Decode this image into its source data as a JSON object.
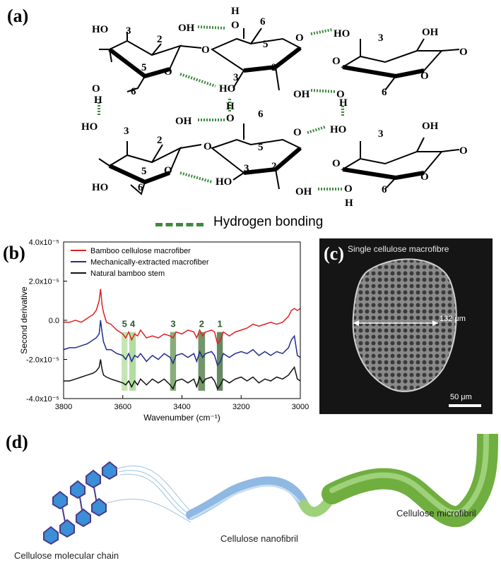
{
  "panels": {
    "a": "(a)",
    "b": "(b)",
    "c": "(c)",
    "d": "(d)"
  },
  "structure": {
    "top": {
      "ho_left": "HO",
      "oh_2": "OH",
      "h_top": "H",
      "o_ring1": "O",
      "o_ring2": "O",
      "o_link1": "O",
      "o_link2": "O",
      "ho_right": "HO",
      "oh_right": "OH",
      "o_h_bottom": "O",
      "h_bottom": "H",
      "oh_bottom": "OH",
      "o_bottom2": "O",
      "h_right": "H",
      "o_ring3": "O",
      "o_end": "O"
    },
    "bottom": {
      "ho_left": "HO",
      "oh_2": "OH",
      "o_top": "O",
      "ho_right": "HO",
      "oh_right": "OH",
      "o_link1": "O",
      "o_link2": "O",
      "o_ring1": "O",
      "o_ring2": "O",
      "o_ring3": "O",
      "ho_bottom_left": "HO",
      "ho_bottom_mid": "HO",
      "oh_bottom": "OH",
      "o_bottom": "O",
      "h_bottom": "H",
      "o_end": "O"
    },
    "numbers": {
      "n3": "3",
      "n2": "2",
      "n5": "5",
      "n6": "6"
    },
    "legend_label": "Hydrogen bonding"
  },
  "chart_data": {
    "type": "line",
    "xlabel": "Wavenumber (cm⁻¹)",
    "ylabel": "Second derivative",
    "xlim": [
      3800,
      3000
    ],
    "ylim": [
      -4e-05,
      4e-05
    ],
    "x_ticks": [
      "3800",
      "3600",
      "3400",
      "3200",
      "3000"
    ],
    "y_ticks": [
      "4.0x10⁻⁵",
      "2.0x10⁻⁵",
      "0.0",
      "-2.0x10⁻⁵",
      "-4.0x10⁻⁵"
    ],
    "legend_position": "top-left",
    "series": [
      {
        "name": "Bamboo cellulose macrofiber",
        "color": "#e02020",
        "x": [
          3800,
          3780,
          3760,
          3740,
          3720,
          3700,
          3690,
          3680,
          3675,
          3670,
          3665,
          3655,
          3640,
          3620,
          3600,
          3590,
          3580,
          3570,
          3560,
          3550,
          3540,
          3520,
          3500,
          3480,
          3460,
          3440,
          3430,
          3420,
          3400,
          3380,
          3360,
          3350,
          3340,
          3330,
          3320,
          3300,
          3290,
          3280,
          3270,
          3260,
          3240,
          3220,
          3200,
          3180,
          3160,
          3140,
          3120,
          3100,
          3080,
          3060,
          3040,
          3030,
          3020,
          3010,
          3000
        ],
        "values": [
          -0.1,
          -0.1,
          0.0,
          -0.1,
          0.1,
          0.3,
          0.5,
          1.0,
          1.6,
          0.8,
          0.4,
          -0.1,
          -0.2,
          -0.5,
          -0.7,
          -0.9,
          -0.6,
          -1.0,
          -0.7,
          -0.8,
          -0.5,
          -0.9,
          -0.8,
          -0.9,
          -0.7,
          -0.8,
          -0.9,
          -0.6,
          -0.7,
          -0.5,
          -0.6,
          -0.9,
          -0.5,
          -0.8,
          -0.6,
          -0.5,
          -0.6,
          -1.2,
          -1.0,
          -0.6,
          -0.8,
          -0.6,
          -0.5,
          -0.4,
          -0.2,
          -0.3,
          -0.2,
          -0.1,
          -0.2,
          -0.1,
          0.2,
          0.5,
          0.6,
          0.5,
          0.6
        ]
      },
      {
        "name": "Mechanically-extracted macrofiber",
        "color": "#1f2d8a",
        "x": [
          3800,
          3780,
          3760,
          3740,
          3720,
          3700,
          3690,
          3680,
          3675,
          3670,
          3665,
          3655,
          3640,
          3620,
          3600,
          3590,
          3580,
          3570,
          3560,
          3550,
          3540,
          3520,
          3500,
          3480,
          3460,
          3440,
          3430,
          3420,
          3400,
          3380,
          3360,
          3350,
          3340,
          3330,
          3320,
          3300,
          3290,
          3280,
          3270,
          3260,
          3240,
          3220,
          3200,
          3180,
          3160,
          3140,
          3120,
          3100,
          3080,
          3060,
          3040,
          3030,
          3020,
          3010,
          3000
        ],
        "values": [
          -1.5,
          -1.4,
          -1.4,
          -1.3,
          -1.2,
          -1.0,
          -0.9,
          -0.7,
          0.0,
          -0.6,
          -1.1,
          -1.5,
          -1.5,
          -1.7,
          -1.8,
          -2.0,
          -1.7,
          -2.1,
          -1.8,
          -1.9,
          -1.7,
          -2.1,
          -1.8,
          -2.0,
          -1.7,
          -1.9,
          -2.2,
          -1.8,
          -1.7,
          -1.9,
          -1.7,
          -2.1,
          -1.6,
          -1.9,
          -1.7,
          -1.6,
          -1.8,
          -2.3,
          -2.1,
          -1.7,
          -1.9,
          -1.7,
          -1.6,
          -1.7,
          -1.5,
          -1.8,
          -1.6,
          -1.8,
          -1.6,
          -1.7,
          -1.4,
          -1.0,
          -0.8,
          -1.8,
          -1.9
        ]
      },
      {
        "name": "Natural bamboo stem",
        "color": "#111111",
        "x": [
          3800,
          3780,
          3760,
          3740,
          3720,
          3700,
          3690,
          3680,
          3675,
          3670,
          3665,
          3655,
          3640,
          3620,
          3600,
          3590,
          3580,
          3570,
          3560,
          3550,
          3540,
          3520,
          3500,
          3480,
          3460,
          3440,
          3430,
          3420,
          3400,
          3380,
          3360,
          3350,
          3340,
          3330,
          3320,
          3300,
          3290,
          3280,
          3270,
          3260,
          3240,
          3220,
          3200,
          3180,
          3160,
          3140,
          3120,
          3100,
          3080,
          3060,
          3040,
          3030,
          3020,
          3010,
          3000
        ],
        "values": [
          -3.1,
          -3.1,
          -3.0,
          -2.9,
          -2.8,
          -2.7,
          -2.6,
          -2.4,
          -2.0,
          -2.5,
          -2.8,
          -2.9,
          -3.0,
          -3.1,
          -3.2,
          -3.3,
          -3.1,
          -3.4,
          -3.1,
          -3.3,
          -3.0,
          -3.3,
          -3.0,
          -3.2,
          -3.0,
          -3.3,
          -3.5,
          -3.1,
          -3.0,
          -3.2,
          -3.0,
          -3.4,
          -2.9,
          -3.2,
          -3.0,
          -2.9,
          -3.1,
          -3.5,
          -3.3,
          -3.0,
          -3.2,
          -3.0,
          -2.9,
          -3.1,
          -2.9,
          -3.2,
          -3.0,
          -3.1,
          -2.9,
          -3.0,
          -2.8,
          -2.6,
          -2.4,
          -3.0,
          -3.1
        ]
      }
    ],
    "bands": [
      {
        "label": "5",
        "x0": 3604,
        "x1": 3584,
        "color": "#b7e0a0"
      },
      {
        "label": "4",
        "x0": 3578,
        "x1": 3556,
        "color": "#9fd48a"
      },
      {
        "label": "3",
        "x0": 3440,
        "x1": 3420,
        "color": "#6a9a55"
      },
      {
        "label": "2",
        "x0": 3345,
        "x1": 3322,
        "color": "#4f7a44"
      },
      {
        "label": "1",
        "x0": 3282,
        "x1": 3262,
        "color": "#3f6a3a"
      }
    ]
  },
  "micrograph": {
    "title": "Single cellulose macrofibre",
    "measure": "132 μm",
    "scale": "50 μm"
  },
  "illustration": {
    "chain_label": "Cellulose molecular chain",
    "nanofibril_label": "Cellulose nanofibril",
    "microfibril_label": "Cellulose microfibril"
  }
}
